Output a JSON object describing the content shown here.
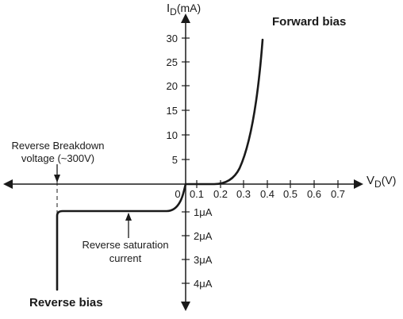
{
  "diagram": {
    "y_axis_label": {
      "main": "I",
      "sub": "D",
      "unit": "(mA)"
    },
    "x_axis_label": {
      "main": "V",
      "sub": "D",
      "unit": "(V)"
    },
    "forward_label": "Forward bias",
    "reverse_label": "Reverse bias",
    "breakdown_label_line1": "Reverse Breakdown",
    "breakdown_label_line2": "voltage (~300V)",
    "saturation_label_line1": "Reverse saturation",
    "saturation_label_line2": "current",
    "origin_label": "0",
    "y_ticks_pos": [
      "30",
      "25",
      "20",
      "15",
      "10",
      "5"
    ],
    "y_ticks_neg": [
      "1μA",
      "2μA",
      "3μA",
      "4μA"
    ],
    "x_ticks": [
      "0.1",
      "0.2",
      "0.3",
      "0.4",
      "0.5",
      "0.6",
      "0.7"
    ],
    "colors": {
      "ink": "#1a1a1a",
      "background": "#ffffff"
    }
  }
}
